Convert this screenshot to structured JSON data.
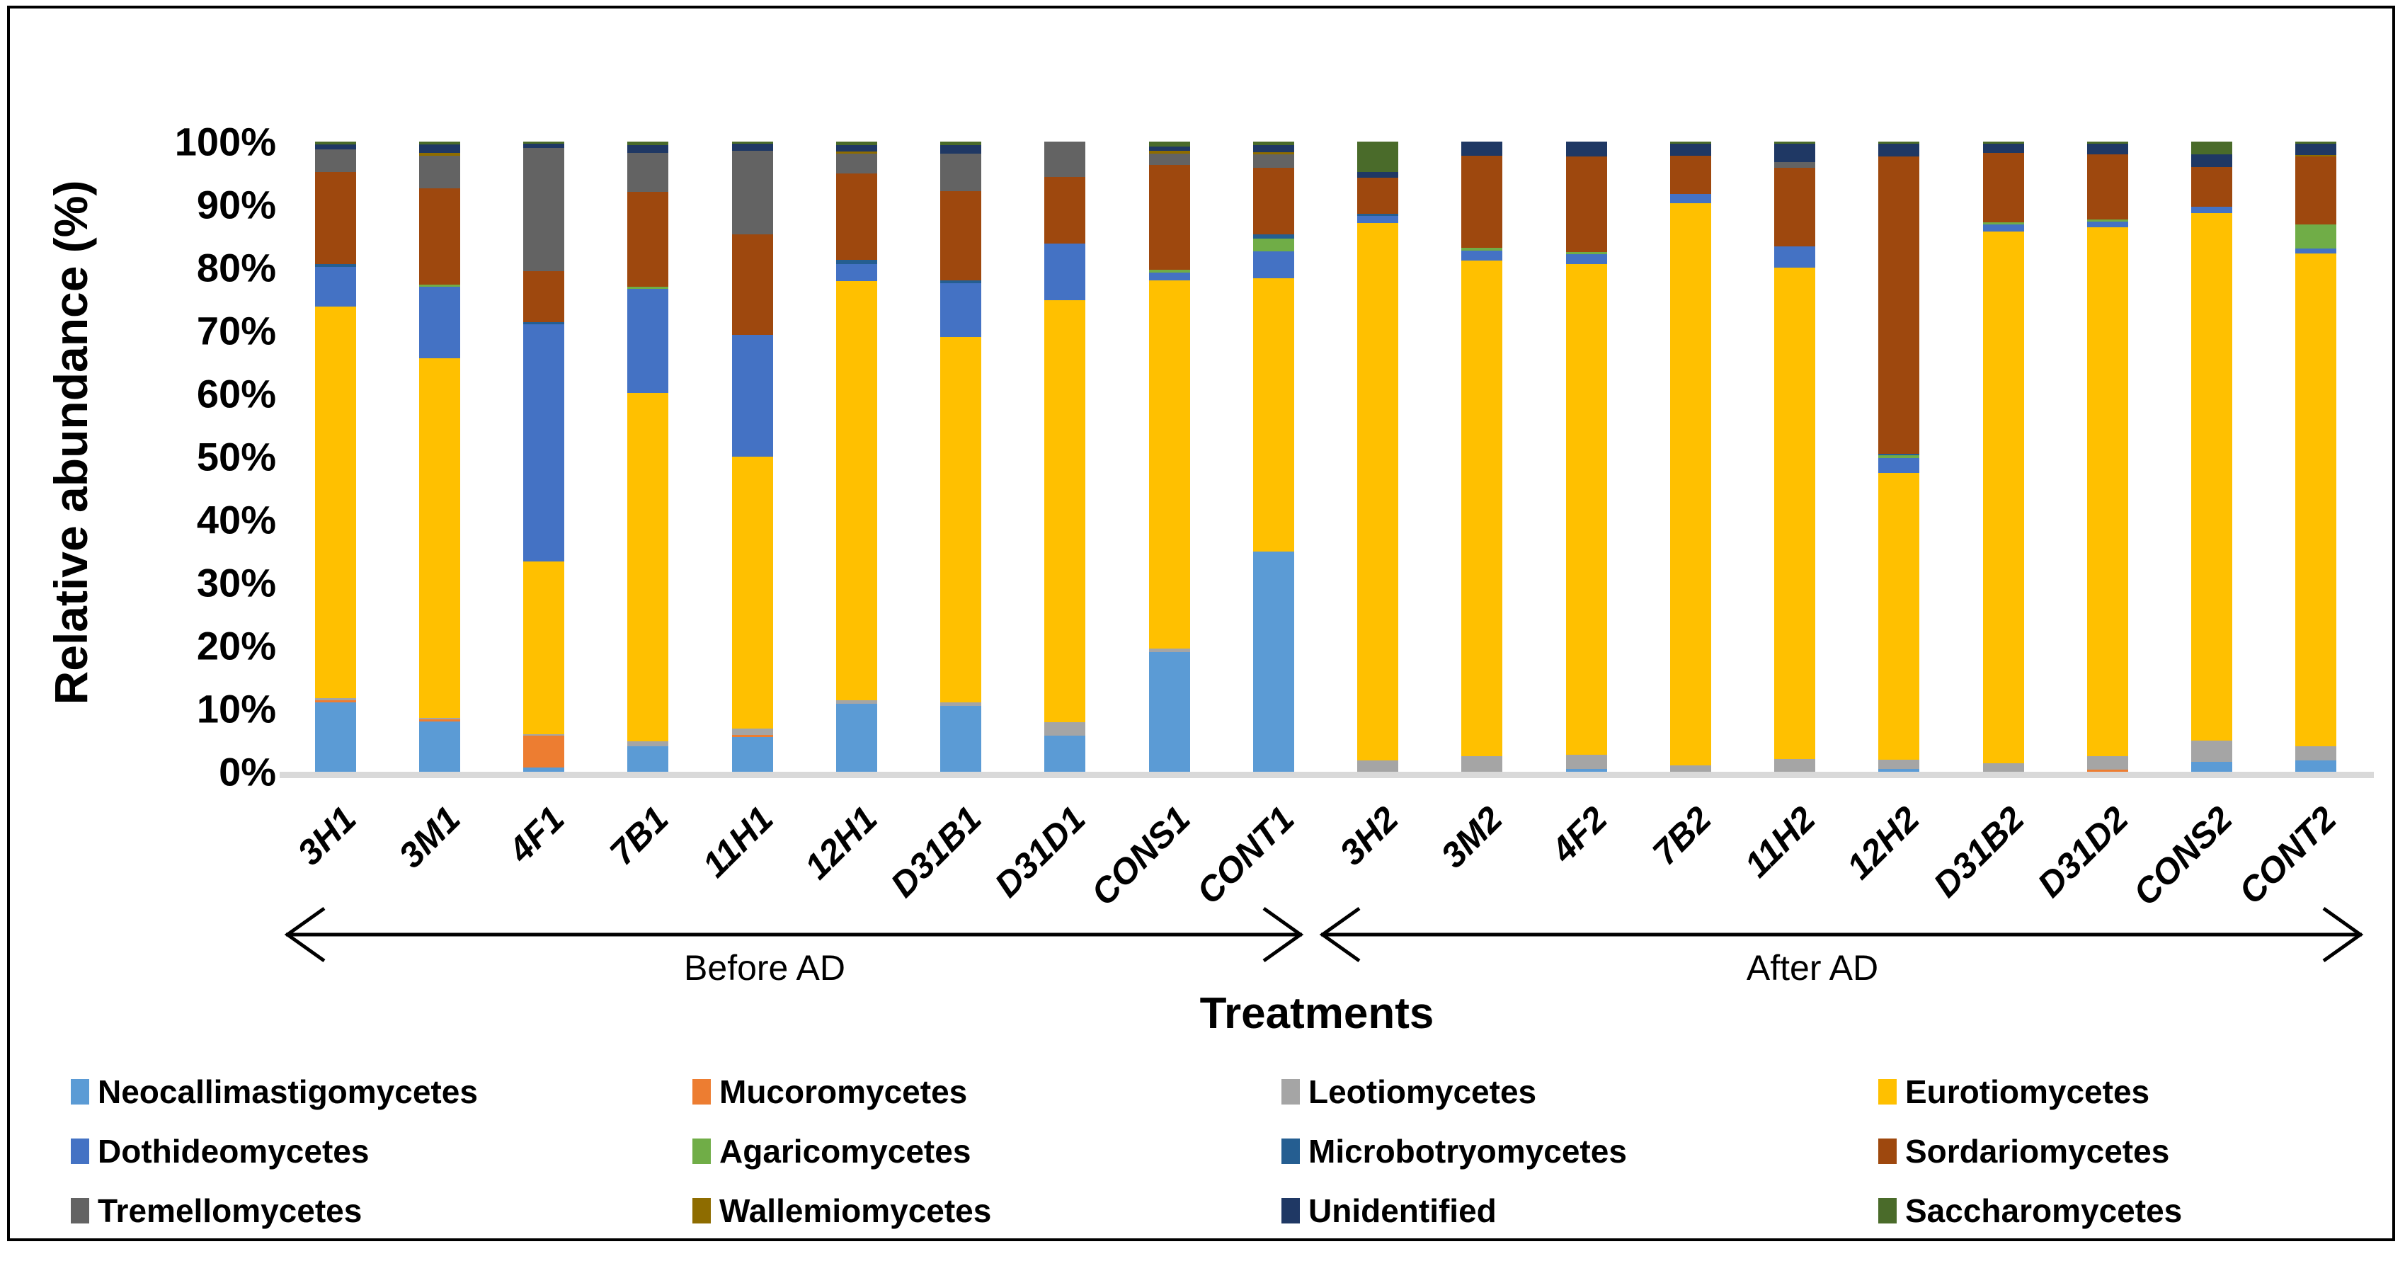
{
  "figure": {
    "y_axis_title": "Relative abundance (%)",
    "x_axis_title": "Treatments",
    "group_before_label": "Before AD",
    "group_after_label": "After AD"
  },
  "chart_data": {
    "type": "bar",
    "stacked": true,
    "units": "percent",
    "title": "",
    "ylabel": "Relative abundance (%)",
    "xlabel": "Treatments",
    "ylim": [
      0,
      100
    ],
    "ytick_step": 10,
    "ytick_labels": [
      "0%",
      "10%",
      "20%",
      "30%",
      "40%",
      "50%",
      "60%",
      "70%",
      "80%",
      "90%",
      "100%"
    ],
    "grid": false,
    "legend_position": "bottom",
    "axis_baseline_color": "#D9D9D9",
    "categories": [
      "3H1",
      "3M1",
      "4F1",
      "7B1",
      "11H1",
      "12H1",
      "D31B1",
      "D31D1",
      "CONS1",
      "CONT1",
      "3H2",
      "3M2",
      "4F2",
      "7B2",
      "11H2",
      "12H2",
      "D31B2",
      "D31D2",
      "CONS2",
      "CONT2"
    ],
    "groups": [
      {
        "label": "Before AD",
        "categories": [
          "3H1",
          "3M1",
          "4F1",
          "7B1",
          "11H1",
          "12H1",
          "D31B1",
          "D31D1",
          "CONS1",
          "CONT1"
        ]
      },
      {
        "label": "After AD",
        "categories": [
          "3H2",
          "3M2",
          "4F2",
          "7B2",
          "11H2",
          "12H2",
          "D31B2",
          "D31D2",
          "CONS2",
          "CONT2"
        ]
      }
    ],
    "series": [
      {
        "name": "Neocallimastigomycetes",
        "color": "#5B9BD5",
        "values": [
          11.0,
          8.0,
          0.7,
          4.0,
          5.5,
          10.8,
          10.5,
          5.7,
          19.0,
          35.0,
          0,
          0,
          0.5,
          0,
          0,
          0.4,
          0,
          0,
          1.6,
          1.8
        ]
      },
      {
        "name": "Mucoromycetes",
        "color": "#ED7D31",
        "values": [
          0.4,
          0.3,
          5.0,
          0,
          0.4,
          0,
          0,
          0,
          0,
          0,
          0,
          0,
          0,
          0,
          0,
          0,
          0,
          0.3,
          0,
          0
        ]
      },
      {
        "name": "Leotiomycetes",
        "color": "#A5A5A5",
        "values": [
          0.3,
          0.3,
          0.3,
          0.8,
          1.0,
          0.6,
          0.5,
          2.2,
          0.5,
          0,
          1.8,
          2.5,
          2.2,
          1.0,
          2.0,
          1.5,
          1.3,
          2.2,
          3.3,
          2.2
        ]
      },
      {
        "name": "Eurotiomycetes",
        "color": "#FFC000",
        "values": [
          62.1,
          57.0,
          27.4,
          55.3,
          43.1,
          66.5,
          58.0,
          66.9,
          58.5,
          43.3,
          85.3,
          78.6,
          77.9,
          89.2,
          78.0,
          45.5,
          84.4,
          83.9,
          83.8,
          78.3
        ]
      },
      {
        "name": "Dothideomycetes",
        "color": "#4472C4",
        "values": [
          6.3,
          11.4,
          37.6,
          16.5,
          19.3,
          2.7,
          8.5,
          9.0,
          1.2,
          4.3,
          1.1,
          1.6,
          1.5,
          1.5,
          3.4,
          2.4,
          1.2,
          0.9,
          1.0,
          0.7
        ]
      },
      {
        "name": "Agaricomycetes",
        "color": "#70AD47",
        "values": [
          0,
          0.3,
          0,
          0.4,
          0,
          0,
          0,
          0,
          0.5,
          2.0,
          0,
          0.4,
          0.4,
          0,
          0,
          0.4,
          0.3,
          0.3,
          0,
          3.9
        ]
      },
      {
        "name": "Microbotryomycetes",
        "color": "#255E91",
        "values": [
          0.5,
          0,
          0.4,
          0,
          0,
          0.6,
          0.5,
          0,
          0,
          0.7,
          0.4,
          0,
          0,
          0,
          0,
          0.3,
          0,
          0,
          0,
          0
        ]
      },
      {
        "name": "Sordariomycetes",
        "color": "#9E480E",
        "values": [
          14.6,
          15.3,
          8.1,
          15.0,
          16.0,
          13.7,
          14.1,
          10.6,
          16.6,
          10.5,
          5.7,
          14.7,
          15.1,
          6.1,
          12.4,
          47.1,
          11.0,
          10.4,
          6.3,
          10.7
        ]
      },
      {
        "name": "Tremellomycetes",
        "color": "#636363",
        "values": [
          3.6,
          5.2,
          19.5,
          6.2,
          13.2,
          3.2,
          6.0,
          5.6,
          1.8,
          2.2,
          0,
          0,
          0,
          0,
          0.9,
          0,
          0,
          0,
          0,
          0
        ]
      },
      {
        "name": "Wallemiomycetes",
        "color": "#8E6C00",
        "values": [
          0,
          0.4,
          0,
          0,
          0,
          0.3,
          0,
          0,
          0.4,
          0.3,
          0,
          0,
          0,
          0,
          0,
          0,
          0,
          0,
          0,
          0.3
        ]
      },
      {
        "name": "Unidentified",
        "color": "#1F3864",
        "values": [
          0.8,
          1.4,
          0.7,
          1.3,
          1.2,
          1.1,
          1.3,
          0,
          0.7,
          1.2,
          0.9,
          2.2,
          2.4,
          1.9,
          3.0,
          2.1,
          1.5,
          1.7,
          2.0,
          1.8
        ]
      },
      {
        "name": "Saccharomycetes",
        "color": "#4A6B2A",
        "values": [
          0.4,
          0.4,
          0.3,
          0.5,
          0.3,
          0.5,
          0.6,
          0,
          0.8,
          0.5,
          4.8,
          0,
          0,
          0.3,
          0.3,
          0.3,
          0.3,
          0.3,
          2.0,
          0.3
        ]
      }
    ]
  }
}
